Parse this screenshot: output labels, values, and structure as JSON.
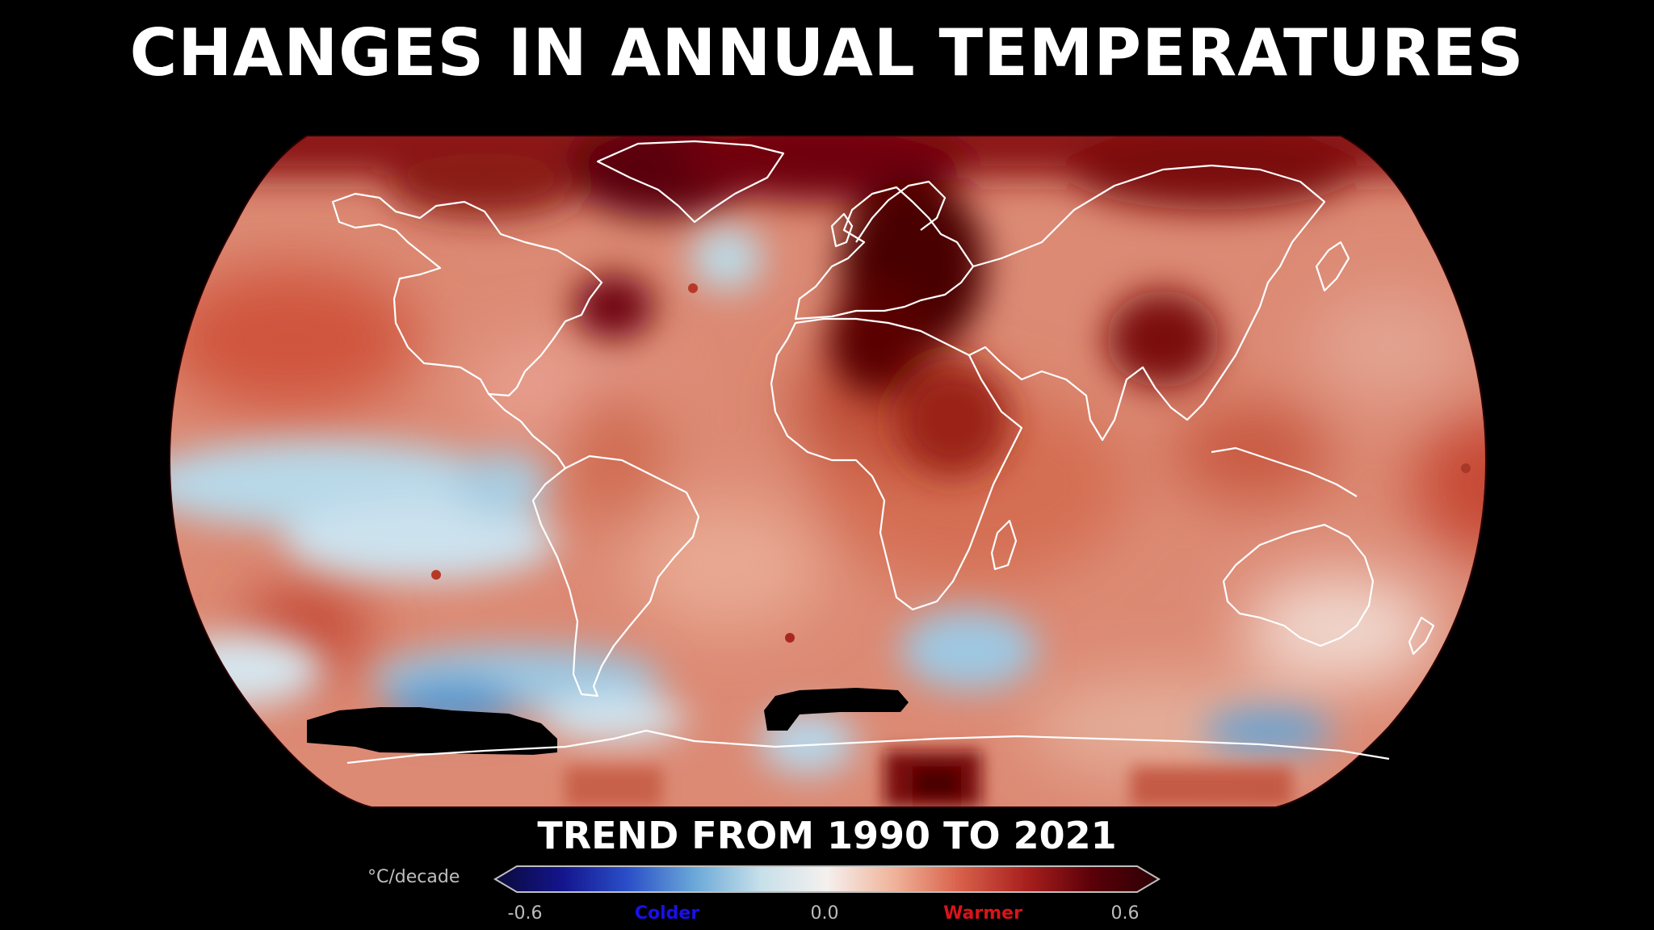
{
  "title": "CHANGES IN ANNUAL TEMPERATURES",
  "subtitle": "TREND FROM 1990 TO 2021",
  "legend": {
    "unit": "°C/decade",
    "min_label": "-0.6",
    "mid_label": "0.0",
    "max_label": "0.6",
    "colder_label": "Colder",
    "warmer_label": "Warmer",
    "colder_color": "#1a10e8",
    "warmer_color": "#d8141a",
    "scale_min": -0.6,
    "scale_max": 0.6,
    "gradient": [
      "#0a0a3a",
      "#14148c",
      "#2a4fc8",
      "#6aa8d8",
      "#c7e0ea",
      "#f5f0ee",
      "#f0b49a",
      "#d8604a",
      "#a8201e",
      "#5a0008",
      "#2a0004"
    ]
  },
  "map": {
    "projection": "robinson",
    "land_outline_color": "#ffffff",
    "missing_data_color": "#000000"
  }
}
